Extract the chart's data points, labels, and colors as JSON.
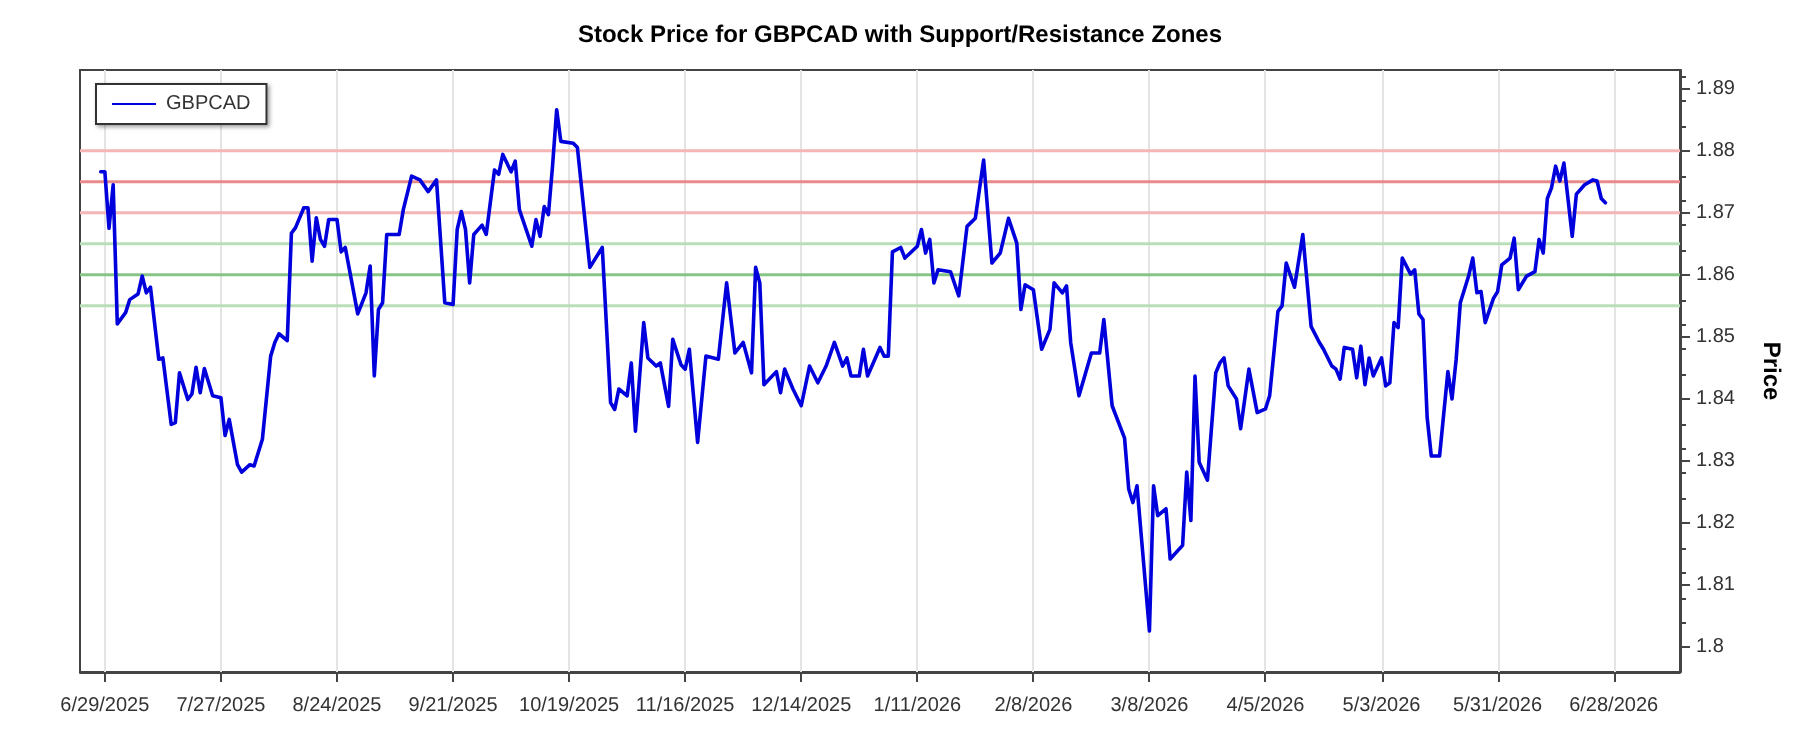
{
  "chart_data": {
    "type": "line",
    "title": "Stock Price for GBPCAD with Support/Resistance Zones",
    "ylabel": "Price",
    "x": [
      "2025-06-28",
      "2025-06-29",
      "2025-06-30",
      "2025-07-01",
      "2025-07-02",
      "2025-07-04",
      "2025-07-05",
      "2025-07-07",
      "2025-07-08",
      "2025-07-09",
      "2025-07-10",
      "2025-07-12",
      "2025-07-13",
      "2025-07-15",
      "2025-07-16",
      "2025-07-17",
      "2025-07-19",
      "2025-07-20",
      "2025-07-21",
      "2025-07-22",
      "2025-07-23",
      "2025-07-25",
      "2025-07-27",
      "2025-07-28",
      "2025-07-29",
      "2025-07-31",
      "2025-08-01",
      "2025-08-03",
      "2025-08-04",
      "2025-08-06",
      "2025-08-08",
      "2025-08-09",
      "2025-08-10",
      "2025-08-12",
      "2025-08-13",
      "2025-08-14",
      "2025-08-16",
      "2025-08-17",
      "2025-08-18",
      "2025-08-19",
      "2025-08-20",
      "2025-08-21",
      "2025-08-22",
      "2025-08-24",
      "2025-08-25",
      "2025-08-26",
      "2025-08-29",
      "2025-08-31",
      "2025-09-01",
      "2025-09-02",
      "2025-09-03",
      "2025-09-04",
      "2025-09-05",
      "2025-09-08",
      "2025-09-09",
      "2025-09-11",
      "2025-09-13",
      "2025-09-15",
      "2025-09-17",
      "2025-09-19",
      "2025-09-21",
      "2025-09-22",
      "2025-09-23",
      "2025-09-24",
      "2025-09-25",
      "2025-09-26",
      "2025-09-28",
      "2025-09-29",
      "2025-10-01",
      "2025-10-02",
      "2025-10-03",
      "2025-10-05",
      "2025-10-06",
      "2025-10-07",
      "2025-10-10",
      "2025-10-11",
      "2025-10-12",
      "2025-10-13",
      "2025-10-14",
      "2025-10-15",
      "2025-10-16",
      "2025-10-17",
      "2025-10-20",
      "2025-10-21",
      "2025-10-24",
      "2025-10-27",
      "2025-10-29",
      "2025-10-30",
      "2025-10-31",
      "2025-11-02",
      "2025-11-03",
      "2025-11-04",
      "2025-11-06",
      "2025-11-07",
      "2025-11-09",
      "2025-11-10",
      "2025-11-12",
      "2025-11-13",
      "2025-11-15",
      "2025-11-16",
      "2025-11-17",
      "2025-11-19",
      "2025-11-21",
      "2025-11-24",
      "2025-11-26",
      "2025-11-28",
      "2025-11-30",
      "2025-12-02",
      "2025-12-03",
      "2025-12-04",
      "2025-12-05",
      "2025-12-08",
      "2025-12-09",
      "2025-12-10",
      "2025-12-12",
      "2025-12-14",
      "2025-12-16",
      "2025-12-18",
      "2025-12-20",
      "2025-12-22",
      "2025-12-24",
      "2025-12-25",
      "2025-12-26",
      "2025-12-28",
      "2025-12-29",
      "2025-12-30",
      "2026-01-02",
      "2026-01-03",
      "2026-01-04",
      "2026-01-05",
      "2026-01-07",
      "2026-01-08",
      "2026-01-11",
      "2026-01-12",
      "2026-01-13",
      "2026-01-14",
      "2026-01-15",
      "2026-01-16",
      "2026-01-19",
      "2026-01-21",
      "2026-01-23",
      "2026-01-25",
      "2026-01-27",
      "2026-01-29",
      "2026-01-31",
      "2026-02-02",
      "2026-02-04",
      "2026-02-05",
      "2026-02-06",
      "2026-02-08",
      "2026-02-10",
      "2026-02-12",
      "2026-02-13",
      "2026-02-15",
      "2026-02-16",
      "2026-02-17",
      "2026-02-19",
      "2026-02-22",
      "2026-02-24",
      "2026-02-25",
      "2026-02-27",
      "2026-03-02",
      "2026-03-03",
      "2026-03-04",
      "2026-03-05",
      "2026-03-08",
      "2026-03-09",
      "2026-03-10",
      "2026-03-12",
      "2026-03-13",
      "2026-03-16",
      "2026-03-17",
      "2026-03-18",
      "2026-03-19",
      "2026-03-20",
      "2026-03-22",
      "2026-03-24",
      "2026-03-25",
      "2026-03-26",
      "2026-03-27",
      "2026-03-29",
      "2026-03-30",
      "2026-04-01",
      "2026-04-03",
      "2026-04-05",
      "2026-04-06",
      "2026-04-08",
      "2026-04-09",
      "2026-04-10",
      "2026-04-12",
      "2026-04-14",
      "2026-04-16",
      "2026-04-18",
      "2026-04-19",
      "2026-04-21",
      "2026-04-22",
      "2026-04-23",
      "2026-04-24",
      "2026-04-26",
      "2026-04-27",
      "2026-04-28",
      "2026-04-29",
      "2026-04-30",
      "2026-05-01",
      "2026-05-03",
      "2026-05-04",
      "2026-05-05",
      "2026-05-06",
      "2026-05-07",
      "2026-05-08",
      "2026-05-10",
      "2026-05-11",
      "2026-05-12",
      "2026-05-13",
      "2026-05-14",
      "2026-05-15",
      "2026-05-17",
      "2026-05-19",
      "2026-05-20",
      "2026-05-21",
      "2026-05-22",
      "2026-05-24",
      "2026-05-25",
      "2026-05-26",
      "2026-05-27",
      "2026-05-28",
      "2026-05-30",
      "2026-05-31",
      "2026-06-01",
      "2026-06-03",
      "2026-06-04",
      "2026-06-05",
      "2026-06-07",
      "2026-06-09",
      "2026-06-10",
      "2026-06-11",
      "2026-06-12",
      "2026-06-13",
      "2026-06-14",
      "2026-06-15",
      "2026-06-16",
      "2026-06-18",
      "2026-06-19",
      "2026-06-21",
      "2026-06-23",
      "2026-06-24",
      "2026-06-25",
      "2026-06-26"
    ],
    "series": [
      {
        "name": "GBPCAD",
        "color": "#0000dd",
        "values": [
          1.8766,
          1.8766,
          1.8675,
          1.8745,
          1.8521,
          1.8539,
          1.856,
          1.8569,
          1.8598,
          1.8571,
          1.858,
          1.8464,
          1.8466,
          1.8359,
          1.8362,
          1.8442,
          1.8399,
          1.8408,
          1.8451,
          1.841,
          1.8449,
          1.8405,
          1.8402,
          1.8341,
          1.8367,
          1.8294,
          1.8282,
          1.8294,
          1.8292,
          1.8335,
          1.8469,
          1.8491,
          1.8505,
          1.8494,
          1.8667,
          1.8676,
          1.8708,
          1.8708,
          1.8622,
          1.8692,
          1.8657,
          1.8646,
          1.8689,
          1.8689,
          1.8637,
          1.8644,
          1.8537,
          1.8571,
          1.8614,
          1.8437,
          1.8544,
          1.8555,
          1.8665,
          1.8665,
          1.8705,
          1.8759,
          1.8753,
          1.8734,
          1.8753,
          1.8555,
          1.8552,
          1.8673,
          1.8702,
          1.8673,
          1.8587,
          1.8665,
          1.868,
          1.8665,
          1.8769,
          1.8762,
          1.8794,
          1.8766,
          1.8783,
          1.8705,
          1.8646,
          1.8689,
          1.8662,
          1.871,
          1.8697,
          1.8775,
          1.8866,
          1.8815,
          1.8812,
          1.8805,
          1.8612,
          1.8644,
          1.8394,
          1.8383,
          1.8416,
          1.8405,
          1.8458,
          1.8348,
          1.8523,
          1.8466,
          1.8453,
          1.8458,
          1.8388,
          1.8496,
          1.8455,
          1.8448,
          1.848,
          1.833,
          1.8469,
          1.8464,
          1.8587,
          1.8474,
          1.8491,
          1.8442,
          1.8612,
          1.8587,
          1.8423,
          1.8444,
          1.841,
          1.8448,
          1.8416,
          1.8389,
          1.8453,
          1.8426,
          1.8453,
          1.8491,
          1.8453,
          1.8466,
          1.8437,
          1.8437,
          1.848,
          1.8437,
          1.8483,
          1.8469,
          1.8469,
          1.8637,
          1.8644,
          1.8627,
          1.8646,
          1.8673,
          1.8635,
          1.8657,
          1.8587,
          1.8608,
          1.8605,
          1.8566,
          1.8678,
          1.8691,
          1.8785,
          1.8619,
          1.8635,
          1.8691,
          1.8651,
          1.8544,
          1.8584,
          1.8576,
          1.848,
          1.8512,
          1.8587,
          1.8571,
          1.8582,
          1.8491,
          1.8405,
          1.8474,
          1.8474,
          1.8528,
          1.8389,
          1.8337,
          1.8255,
          1.8233,
          1.826,
          1.8026,
          1.826,
          1.8212,
          1.8223,
          1.8142,
          1.8164,
          1.8282,
          1.8204,
          1.8437,
          1.8298,
          1.8269,
          1.8442,
          1.8458,
          1.8466,
          1.8421,
          1.84,
          1.8352,
          1.8448,
          1.8378,
          1.8384,
          1.8405,
          1.8541,
          1.855,
          1.8619,
          1.858,
          1.8665,
          1.8517,
          1.8491,
          1.848,
          1.8453,
          1.8448,
          1.8432,
          1.8483,
          1.848,
          1.8434,
          1.8485,
          1.8423,
          1.8466,
          1.8437,
          1.8466,
          1.8421,
          1.8426,
          1.8523,
          1.8515,
          1.8627,
          1.8601,
          1.8608,
          1.8537,
          1.8528,
          1.837,
          1.8308,
          1.8308,
          1.8444,
          1.84,
          1.8464,
          1.8555,
          1.8598,
          1.8627,
          1.8571,
          1.8573,
          1.8523,
          1.8562,
          1.8573,
          1.8616,
          1.8627,
          1.8659,
          1.8576,
          1.8598,
          1.8605,
          1.8657,
          1.8635,
          1.8723,
          1.874,
          1.8775,
          1.8751,
          1.878,
          1.8662,
          1.873,
          1.8745,
          1.8753,
          1.8751,
          1.8723,
          1.8716
        ]
      }
    ],
    "xlim": [
      "2025-06-23",
      "2026-07-14"
    ],
    "xticks": [
      {
        "value": "2025-06-29",
        "label": "6/29/2025"
      },
      {
        "value": "2025-07-27",
        "label": "7/27/2025"
      },
      {
        "value": "2025-08-24",
        "label": "8/24/2025"
      },
      {
        "value": "2025-09-21",
        "label": "9/21/2025"
      },
      {
        "value": "2025-10-19",
        "label": "10/19/2025"
      },
      {
        "value": "2025-11-16",
        "label": "11/16/2025"
      },
      {
        "value": "2025-12-14",
        "label": "12/14/2025"
      },
      {
        "value": "2026-01-11",
        "label": "1/11/2026"
      },
      {
        "value": "2026-02-08",
        "label": "2/8/2026"
      },
      {
        "value": "2026-03-08",
        "label": "3/8/2026"
      },
      {
        "value": "2026-04-05",
        "label": "4/5/2026"
      },
      {
        "value": "2026-05-03",
        "label": "5/3/2026"
      },
      {
        "value": "2026-05-31",
        "label": "5/31/2026"
      },
      {
        "value": "2026-06-28",
        "label": "6/28/2026"
      }
    ],
    "ylim": [
      1.796,
      1.893
    ],
    "yticks": [
      1.8,
      1.81,
      1.82,
      1.83,
      1.84,
      1.85,
      1.86,
      1.87,
      1.88,
      1.89
    ],
    "ref_lines": [
      {
        "axis": "y",
        "value": 1.88,
        "color": "#f5b5b5"
      },
      {
        "axis": "y",
        "value": 1.875,
        "color": "#e88a8a"
      },
      {
        "axis": "y",
        "value": 1.87,
        "color": "#f5b5b5"
      },
      {
        "axis": "y",
        "value": 1.865,
        "color": "#b8dfb8"
      },
      {
        "axis": "y",
        "value": 1.86,
        "color": "#86c586"
      },
      {
        "axis": "y",
        "value": 1.855,
        "color": "#b8dfb8"
      }
    ],
    "grid": "x",
    "legend": "top left",
    "marker": "none",
    "line_style": "solid"
  }
}
